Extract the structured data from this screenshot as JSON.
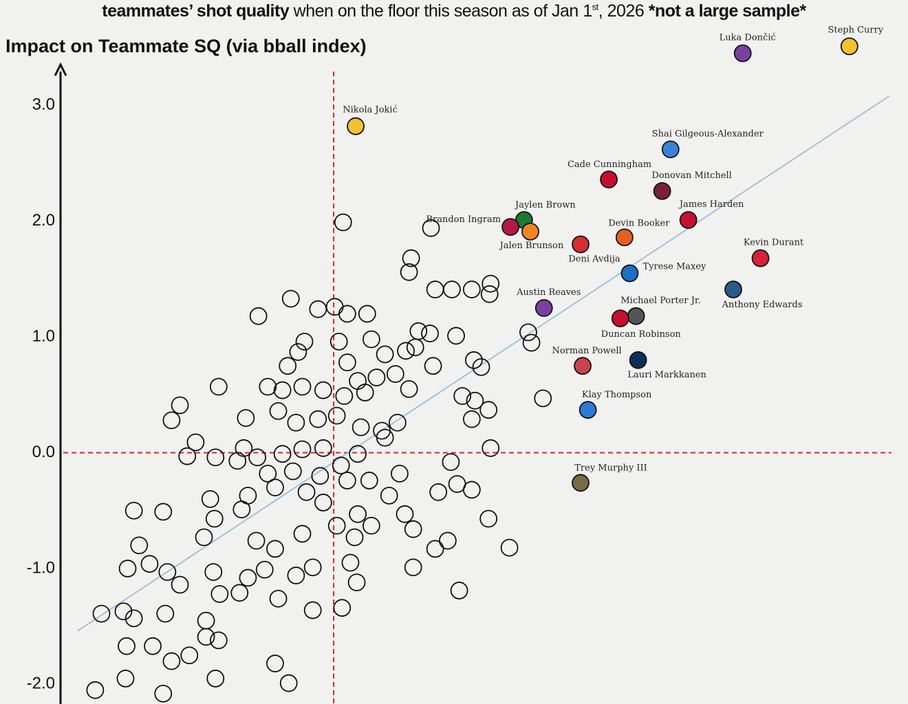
{
  "chart_data": {
    "type": "scatter",
    "subtitle": {
      "parts": [
        "teammates’ shot quality",
        " when on the floor this season as of Jan 1",
        "st",
        ", 2026 ",
        "*not a large sample*"
      ]
    },
    "ylabel": "Impact on Teammate SQ (via bball index)",
    "xlim": [
      -3.19,
      5.49
    ],
    "ylim": [
      -2.17,
      3.91
    ],
    "yticks": [
      {
        "value": -2,
        "label": "-2.0"
      },
      {
        "value": -1,
        "label": "-1.0"
      },
      {
        "value": 0,
        "label": "0.0"
      },
      {
        "value": 1,
        "label": "1.0"
      },
      {
        "value": 2,
        "label": "2.0"
      },
      {
        "value": 3,
        "label": "3.0"
      }
    ],
    "reference_x": 0,
    "reference_y": 0,
    "reference_color": "#d9261c",
    "trendline": {
      "x": [
        -2.45,
        5.31
      ],
      "y": [
        -1.54,
        3.08
      ],
      "color": "#9cc3e0"
    },
    "x": [
      0.09,
      0.93,
      0.74,
      0.72,
      0.97,
      1.13,
      1.32,
      1.5,
      1.49,
      -0.41,
      -0.15,
      0.01,
      0.13,
      0.32,
      -0.72,
      1.86,
      1.89,
      1.17,
      0.81,
      0.92,
      0.36,
      0.05,
      -0.28,
      -0.34,
      -0.44,
      0.13,
      0.49,
      0.69,
      0.78,
      0.95,
      1.34,
      1.41,
      0.23,
      0.41,
      0.59,
      0.72,
      -1.1,
      -0.63,
      -0.49,
      -0.3,
      -0.1,
      0.1,
      0.3,
      1.23,
      1.35,
      2.0,
      -1.47,
      -1.55,
      -0.84,
      -0.53,
      -0.36,
      -0.15,
      0.03,
      0.26,
      0.46,
      0.61,
      1.32,
      1.48,
      -1.32,
      -1.4,
      -1.13,
      -0.92,
      -0.86,
      -0.73,
      -0.49,
      -0.3,
      -0.1,
      0.07,
      0.23,
      0.49,
      1.5,
      1.12,
      -0.63,
      -0.39,
      -0.13,
      0.13,
      0.34,
      0.63,
      1.0,
      1.18,
      1.32,
      -1.18,
      -0.82,
      -0.56,
      -0.26,
      -0.1,
      0.23,
      0.53,
      0.68,
      -1.91,
      -1.63,
      -1.14,
      -0.88,
      -0.3,
      0.03,
      0.36,
      0.76,
      1.48,
      -1.24,
      -0.74,
      -0.56,
      0.2,
      1.09,
      1.68,
      -1.86,
      -1.76,
      -1.97,
      -1.59,
      -1.15,
      -0.82,
      -0.66,
      -0.36,
      -0.2,
      0.16,
      0.76,
      0.97,
      -1.47,
      -1.09,
      -0.9,
      -0.53,
      0.22,
      1.2,
      -2.22,
      -2.01,
      -1.61,
      -1.22,
      -0.2,
      0.08,
      -1.91,
      -1.22,
      -1.98,
      -1.73,
      -1.1,
      -1.55,
      -1.38,
      -0.56,
      -1.99,
      -1.13,
      -0.43,
      -2.28,
      -1.63
    ],
    "values": [
      1.99,
      1.94,
      1.68,
      1.56,
      1.41,
      1.41,
      1.41,
      1.46,
      1.37,
      1.33,
      1.24,
      1.26,
      1.2,
      1.2,
      1.18,
      1.04,
      0.95,
      1.01,
      1.05,
      1.03,
      0.98,
      0.96,
      0.96,
      0.87,
      0.75,
      0.78,
      0.85,
      0.88,
      0.91,
      0.75,
      0.8,
      0.74,
      0.62,
      0.65,
      0.68,
      0.55,
      0.57,
      0.57,
      0.54,
      0.57,
      0.54,
      0.49,
      0.52,
      0.49,
      0.45,
      0.47,
      0.41,
      0.28,
      0.3,
      0.36,
      0.26,
      0.29,
      0.32,
      0.22,
      0.19,
      0.26,
      0.29,
      0.37,
      0.09,
      -0.03,
      -0.04,
      -0.07,
      0.04,
      -0.04,
      -0.01,
      0.03,
      0.04,
      -0.11,
      -0.01,
      0.13,
      0.04,
      -0.08,
      -0.18,
      -0.16,
      -0.2,
      -0.24,
      -0.24,
      -0.18,
      -0.34,
      -0.27,
      -0.32,
      -0.4,
      -0.37,
      -0.3,
      -0.34,
      -0.43,
      -0.53,
      -0.37,
      -0.53,
      -0.5,
      -0.51,
      -0.57,
      -0.49,
      -0.7,
      -0.63,
      -0.63,
      -0.66,
      -0.57,
      -0.73,
      -0.76,
      -0.83,
      -0.73,
      -0.76,
      -0.82,
      -0.8,
      -0.96,
      -1.0,
      -1.03,
      -1.03,
      -1.08,
      -1.01,
      -1.06,
      -0.99,
      -0.95,
      -0.99,
      -0.83,
      -1.14,
      -1.22,
      -1.21,
      -1.26,
      -1.12,
      -1.19,
      -1.39,
      -1.37,
      -1.39,
      -1.45,
      -1.36,
      -1.34,
      -1.43,
      -1.59,
      -1.67,
      -1.67,
      -1.62,
      -1.8,
      -1.75,
      -1.82,
      -1.95,
      -1.95,
      -1.99,
      -2.05,
      -2.08
    ],
    "highlighted": {
      "labels": [
        "Steph Curry",
        "Luka Dončić",
        "Nikola Jokić",
        "Shai Gilgeous-Alexander",
        "Cade Cunningham",
        "Donovan Mitchell",
        "James Harden",
        "Jaylen Brown",
        "Brandon Ingram",
        "Jalen Brunson",
        "Devin Booker",
        "Deni Avdija",
        "Kevin Durant",
        "Tyrese Maxey",
        "Anthony Edwards",
        "Austin Reaves",
        "Michael Porter Jr.",
        "Duncan Robinson",
        "Lauri Markkanen",
        "Norman Powell",
        "Klay Thompson",
        "Trey Murphy III"
      ],
      "x": [
        4.93,
        3.91,
        0.21,
        3.22,
        2.63,
        3.14,
        3.39,
        1.82,
        1.69,
        1.88,
        2.78,
        2.36,
        4.08,
        2.83,
        3.82,
        2.01,
        2.89,
        2.74,
        2.91,
        2.38,
        2.43,
        2.36
      ],
      "y": [
        3.51,
        3.45,
        2.82,
        2.62,
        2.36,
        2.26,
        2.01,
        2.01,
        1.95,
        1.91,
        1.86,
        1.8,
        1.68,
        1.55,
        1.41,
        1.25,
        1.18,
        1.16,
        0.8,
        0.75,
        0.37,
        -0.26
      ],
      "colors": [
        "#f2c230",
        "#7b3fa0",
        "#f2c230",
        "#3b82d6",
        "#c8102e",
        "#7a1f3d",
        "#c8102e",
        "#1a7a32",
        "#b5174a",
        "#f58426",
        "#e56020",
        "#d42e2e",
        "#d4233b",
        "#1d6fc4",
        "#2a5a8a",
        "#7b3fa0",
        "#555555",
        "#c8102e",
        "#0c2f5a",
        "#c8444a",
        "#2d7ad6",
        "#7a6a4a"
      ]
    }
  }
}
